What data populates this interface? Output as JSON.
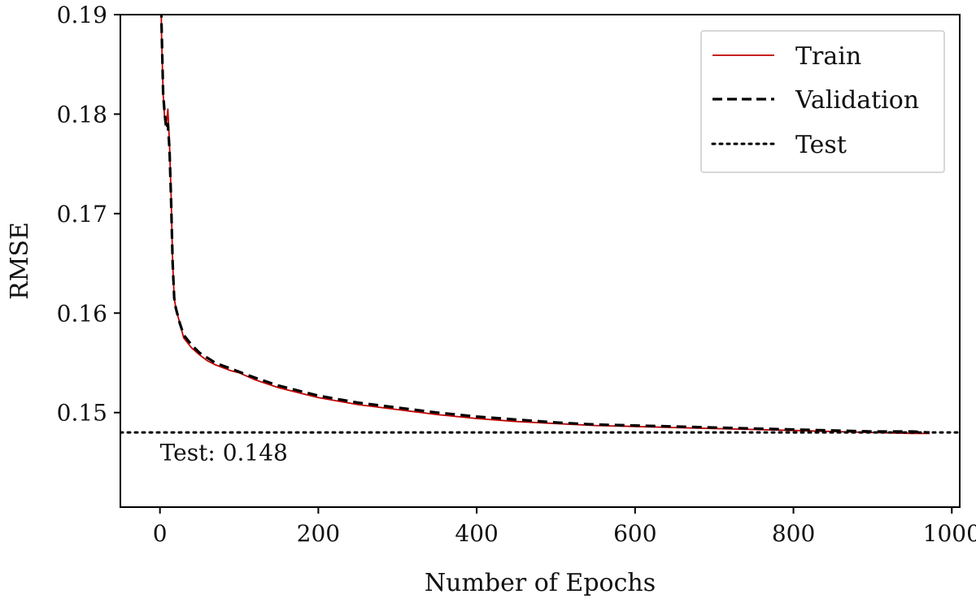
{
  "chart_data": {
    "type": "line",
    "title": "",
    "xlabel": "Number of Epochs",
    "ylabel": "RMSE",
    "xlim": [
      -50,
      1010
    ],
    "ylim": [
      0.1405,
      0.19
    ],
    "x_ticks": [
      0,
      200,
      400,
      600,
      800,
      1000
    ],
    "y_ticks": [
      0.15,
      0.16,
      0.17,
      0.18,
      0.19
    ],
    "x_tick_labels": [
      "0",
      "200",
      "400",
      "600",
      "800",
      "1000"
    ],
    "y_tick_labels": [
      "0.15",
      "0.16",
      "0.17",
      "0.18",
      "0.19"
    ],
    "grid": false,
    "legend_position": "top-right",
    "series": [
      {
        "name": "Train",
        "color": "#c00000",
        "style": "solid",
        "x": [
          0,
          2,
          4,
          6,
          8,
          10,
          12,
          14,
          16,
          18,
          20,
          25,
          30,
          40,
          50,
          60,
          70,
          80,
          90,
          100,
          120,
          150,
          200,
          250,
          300,
          350,
          400,
          450,
          500,
          550,
          600,
          650,
          700,
          750,
          800,
          850,
          900,
          950,
          972
        ],
        "y": [
          0.2,
          0.188,
          0.182,
          0.1795,
          0.179,
          0.1805,
          0.177,
          0.172,
          0.165,
          0.1615,
          0.1605,
          0.159,
          0.1575,
          0.1565,
          0.1558,
          0.1552,
          0.1548,
          0.1545,
          0.1542,
          0.154,
          0.1533,
          0.1525,
          0.1515,
          0.1508,
          0.1503,
          0.1498,
          0.1494,
          0.1491,
          0.1489,
          0.1487,
          0.1486,
          0.1485,
          0.1484,
          0.1483,
          0.1482,
          0.1481,
          0.148,
          0.1479,
          0.1479
        ]
      },
      {
        "name": "Validation",
        "color": "#000000",
        "style": "dashed",
        "x": [
          0,
          2,
          4,
          6,
          8,
          10,
          12,
          14,
          16,
          18,
          20,
          25,
          30,
          40,
          50,
          60,
          70,
          80,
          90,
          100,
          120,
          150,
          200,
          250,
          300,
          350,
          400,
          450,
          500,
          550,
          600,
          650,
          700,
          750,
          800,
          850,
          900,
          950,
          972
        ],
        "y": [
          0.2,
          0.189,
          0.182,
          0.18,
          0.1785,
          0.179,
          0.1765,
          0.1715,
          0.165,
          0.1615,
          0.1605,
          0.159,
          0.1578,
          0.1568,
          0.156,
          0.1555,
          0.155,
          0.1547,
          0.1544,
          0.1541,
          0.1535,
          0.1527,
          0.1517,
          0.151,
          0.1505,
          0.15,
          0.1496,
          0.1493,
          0.149,
          0.1488,
          0.1487,
          0.1486,
          0.1485,
          0.1484,
          0.1483,
          0.1482,
          0.1481,
          0.1481,
          0.148
        ]
      },
      {
        "name": "Test",
        "color": "#000000",
        "style": "dotted",
        "y_constant": 0.148
      }
    ],
    "annotations": [
      {
        "text": "Test: 0.148",
        "x": 0,
        "y": 0.146
      }
    ]
  }
}
